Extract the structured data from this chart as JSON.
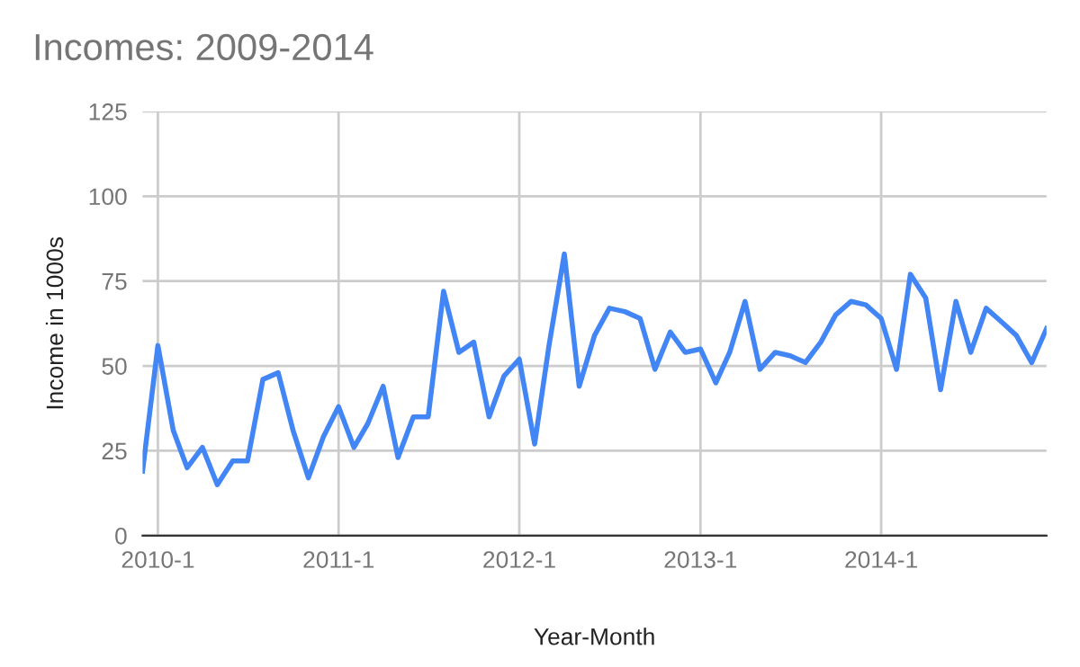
{
  "chart_data": {
    "type": "line",
    "title": "Incomes: 2009-2014",
    "xlabel": "Year-Month",
    "ylabel": "Income in 1000s",
    "x": [
      "2009-12",
      "2010-01",
      "2010-02",
      "2010-03",
      "2010-04",
      "2010-05",
      "2010-06",
      "2010-07",
      "2010-08",
      "2010-09",
      "2010-10",
      "2010-11",
      "2010-12",
      "2011-01",
      "2011-02",
      "2011-03",
      "2011-04",
      "2011-05",
      "2011-06",
      "2011-07",
      "2011-08",
      "2011-09",
      "2011-10",
      "2011-11",
      "2011-12",
      "2012-01",
      "2012-02",
      "2012-03",
      "2012-04",
      "2012-05",
      "2012-06",
      "2012-07",
      "2012-08",
      "2012-09",
      "2012-10",
      "2012-11",
      "2012-12",
      "2013-01",
      "2013-02",
      "2013-03",
      "2013-04",
      "2013-05",
      "2013-06",
      "2013-07",
      "2013-08",
      "2013-09",
      "2013-10",
      "2013-11",
      "2013-12",
      "2014-01",
      "2014-02",
      "2014-03",
      "2014-04",
      "2014-05",
      "2014-06",
      "2014-07",
      "2014-08",
      "2014-09",
      "2014-10",
      "2014-11",
      "2014-12"
    ],
    "series": [
      {
        "color": "#4285f4",
        "values": [
          19,
          56,
          31,
          20,
          26,
          15,
          22,
          22,
          46,
          48,
          31,
          17,
          29,
          38,
          26,
          33,
          44,
          23,
          35,
          35,
          72,
          54,
          57,
          35,
          47,
          52,
          27,
          56,
          83,
          44,
          59,
          67,
          66,
          64,
          49,
          60,
          54,
          55,
          45,
          54,
          69,
          49,
          54,
          53,
          51,
          57,
          65,
          69,
          68,
          64,
          49,
          77,
          70,
          43,
          69,
          54,
          67,
          63,
          59,
          51,
          61
        ]
      }
    ],
    "xlim": [
      "2009-12",
      "2014-12"
    ],
    "xticks": [
      {
        "value": "2010-01",
        "label": "2010-1"
      },
      {
        "value": "2011-01",
        "label": "2011-1"
      },
      {
        "value": "2012-01",
        "label": "2012-1"
      },
      {
        "value": "2013-01",
        "label": "2013-1"
      },
      {
        "value": "2014-01",
        "label": "2014-1"
      }
    ],
    "ylim": [
      0,
      125
    ],
    "yticks": [
      0,
      25,
      50,
      75,
      100,
      125
    ],
    "grid": true,
    "legend": false,
    "marker": "none",
    "line_style": "solid"
  }
}
